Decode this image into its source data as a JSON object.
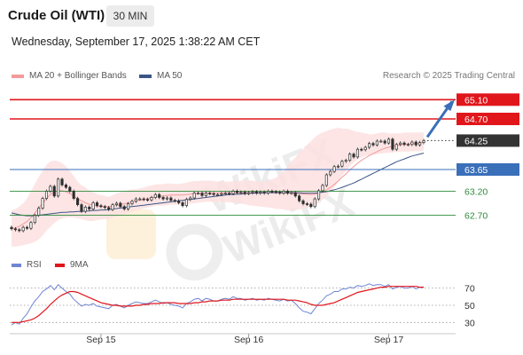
{
  "header": {
    "title": "Crude Oil (WTI)",
    "timeframe": "30 MIN",
    "datetime": "Wednesday, September 17, 2025 1:38:22 AM CET"
  },
  "legend": {
    "ma20_label": "MA 20 + Bollinger Bands",
    "ma50_label": "MA 50",
    "credit": "Research © 2025 Trading Central"
  },
  "rsi_legend": {
    "rsi_label": "RSI",
    "ma_label": "9MA"
  },
  "watermark": "WikiFX",
  "colors": {
    "resistance": "#e0161b",
    "pivot": "#3a6fb9",
    "support": "#2e8b3a",
    "ma20": "#f39a9a",
    "ma50": "#3a5585",
    "candle": "#2f2f2f",
    "bollinger_fill": "#fde0e0",
    "rsi": "#6f85d3",
    "rsi_ma": "#e0161b",
    "arrow": "#3a6fb9"
  },
  "chart_data": [
    {
      "type": "candlestick",
      "title": "Crude Oil (WTI)",
      "timeframe": "30 MIN",
      "x_tick_labels": [
        "Sep 15",
        "Sep 16",
        "Sep 17"
      ],
      "ylim": [
        61.9,
        65.4
      ],
      "levels": [
        {
          "price": 65.1,
          "label": "65.10",
          "kind": "resistance"
        },
        {
          "price": 64.7,
          "label": "64.70",
          "kind": "resistance"
        },
        {
          "price": 64.25,
          "label": "64.25",
          "kind": "last"
        },
        {
          "price": 63.65,
          "label": "63.65",
          "kind": "pivot"
        },
        {
          "price": 63.2,
          "label": "63.20",
          "kind": "support"
        },
        {
          "price": 62.7,
          "label": "62.70",
          "kind": "support"
        }
      ],
      "close": [
        62.42,
        62.4,
        62.38,
        62.45,
        62.43,
        62.55,
        62.7,
        62.85,
        63.05,
        63.2,
        63.3,
        63.1,
        63.45,
        63.33,
        63.28,
        63.2,
        63.05,
        62.92,
        62.78,
        62.87,
        62.83,
        62.96,
        62.9,
        62.88,
        62.86,
        62.82,
        62.92,
        62.95,
        62.88,
        62.83,
        62.94,
        62.99,
        63.04,
        63.04,
        63.03,
        63.02,
        63.07,
        63.13,
        63.07,
        63.04,
        63.06,
        63.01,
        63.0,
        62.96,
        62.9,
        63.03,
        63.06,
        63.16,
        63.16,
        63.11,
        63.16,
        63.15,
        63.13,
        63.13,
        63.15,
        63.16,
        63.15,
        63.2,
        63.17,
        63.18,
        63.15,
        63.17,
        63.19,
        63.16,
        63.18,
        63.16,
        63.2,
        63.19,
        63.18,
        63.16,
        63.2,
        63.16,
        63.17,
        63.1,
        63.0,
        62.94,
        62.93,
        62.88,
        63.04,
        63.21,
        63.32,
        63.54,
        63.61,
        63.71,
        63.72,
        63.82,
        63.84,
        63.97,
        63.91,
        64.07,
        64.06,
        64.11,
        64.19,
        64.16,
        64.24,
        64.24,
        64.2,
        64.28,
        64.07,
        64.17,
        64.2,
        64.17,
        64.17,
        64.22,
        64.16,
        64.21,
        64.25
      ],
      "bollinger_upper": [
        62.8,
        62.83,
        62.88,
        62.95,
        63.05,
        63.2,
        63.35,
        63.5,
        63.62,
        63.75,
        63.82,
        63.84,
        63.82,
        63.78,
        63.72,
        63.62,
        63.52,
        63.4,
        63.32,
        63.28,
        63.22,
        63.18,
        63.14,
        63.12,
        63.1,
        63.08,
        63.12,
        63.15,
        63.18,
        63.2,
        63.22,
        63.24,
        63.24,
        63.26,
        63.28,
        63.3,
        63.32,
        63.34,
        63.34,
        63.35,
        63.36,
        63.36,
        63.35,
        63.35,
        63.36,
        63.38,
        63.4,
        63.41,
        63.41,
        63.42,
        63.42,
        63.42,
        63.41,
        63.4,
        63.4,
        63.4,
        63.4,
        63.41,
        63.41,
        63.42,
        63.42,
        63.42,
        63.42,
        63.4,
        63.4,
        63.4,
        63.42,
        63.45,
        63.48,
        63.55,
        63.62,
        63.72,
        63.82,
        63.9,
        64.0,
        64.08,
        64.16,
        64.24,
        64.32,
        64.38,
        64.42,
        64.45,
        64.48,
        64.5,
        64.52,
        64.5,
        64.5,
        64.48,
        64.45,
        64.43,
        64.42,
        64.4,
        64.38,
        64.38,
        64.4,
        64.42,
        64.42,
        64.4,
        64.4,
        64.4,
        64.4,
        64.42,
        64.42,
        64.42,
        64.42,
        64.42,
        64.42
      ],
      "bollinger_lower": [
        62.05,
        62.05,
        62.06,
        62.08,
        62.1,
        62.12,
        62.15,
        62.2,
        62.28,
        62.38,
        62.46,
        62.54,
        62.6,
        62.63,
        62.65,
        62.66,
        62.65,
        62.64,
        62.62,
        62.6,
        62.58,
        62.58,
        62.6,
        62.61,
        62.62,
        62.62,
        62.65,
        62.68,
        62.7,
        62.72,
        62.75,
        62.78,
        62.8,
        62.82,
        62.84,
        62.86,
        62.88,
        62.9,
        62.9,
        62.9,
        62.91,
        62.92,
        62.92,
        62.92,
        62.93,
        62.93,
        62.94,
        62.95,
        62.96,
        62.97,
        62.98,
        62.98,
        62.98,
        62.97,
        62.97,
        62.97,
        62.97,
        62.96,
        62.95,
        62.94,
        62.93,
        62.91,
        62.9,
        62.89,
        62.88,
        62.87,
        62.86,
        62.85,
        62.83,
        62.83,
        62.82,
        62.8,
        62.8,
        62.81,
        62.82,
        62.84,
        62.86,
        62.88,
        62.9,
        62.96,
        63.02,
        63.1,
        63.18,
        63.28,
        63.4,
        63.52,
        63.62,
        63.72,
        63.8,
        63.86,
        63.9,
        63.93,
        63.95,
        63.96,
        63.97,
        63.98,
        63.99,
        64.0,
        64.0,
        64.01,
        64.02,
        64.02,
        64.02,
        64.03,
        64.03,
        64.03,
        64.04
      ],
      "ma20": [
        62.42,
        62.44,
        62.47,
        62.52,
        62.57,
        62.65,
        62.75,
        62.85,
        62.95,
        63.05,
        63.13,
        63.18,
        63.21,
        63.21,
        63.19,
        63.15,
        63.1,
        63.04,
        63.0,
        62.96,
        62.93,
        62.91,
        62.89,
        62.88,
        62.88,
        62.88,
        62.89,
        62.9,
        62.92,
        62.94,
        62.96,
        62.98,
        62.99,
        63.01,
        63.03,
        63.05,
        63.07,
        63.08,
        63.09,
        63.1,
        63.11,
        63.12,
        63.12,
        63.12,
        63.12,
        63.13,
        63.14,
        63.15,
        63.15,
        63.16,
        63.16,
        63.16,
        63.16,
        63.16,
        63.16,
        63.16,
        63.16,
        63.17,
        63.17,
        63.17,
        63.17,
        63.17,
        63.17,
        63.17,
        63.17,
        63.17,
        63.17,
        63.17,
        63.17,
        63.16,
        63.16,
        63.16,
        63.16,
        63.15,
        63.15,
        63.14,
        63.14,
        63.13,
        63.14,
        63.16,
        63.19,
        63.23,
        63.28,
        63.34,
        63.41,
        63.49,
        63.56,
        63.64,
        63.71,
        63.78,
        63.84,
        63.89,
        63.94,
        63.98,
        64.02,
        64.06,
        64.09,
        64.11,
        64.13,
        64.15,
        64.16,
        64.17,
        64.18,
        64.19,
        64.19,
        64.2,
        64.21
      ],
      "ma50": [
        62.75,
        62.73,
        62.71,
        62.7,
        62.69,
        62.69,
        62.69,
        62.7,
        62.71,
        62.72,
        62.73,
        62.74,
        62.75,
        62.76,
        62.76,
        62.77,
        62.77,
        62.78,
        62.78,
        62.79,
        62.79,
        62.8,
        62.8,
        62.81,
        62.81,
        62.82,
        62.83,
        62.84,
        62.85,
        62.86,
        62.87,
        62.88,
        62.89,
        62.9,
        62.91,
        62.92,
        62.93,
        62.94,
        62.95,
        62.96,
        62.97,
        62.98,
        62.99,
        63.0,
        63.01,
        63.02,
        63.03,
        63.04,
        63.05,
        63.06,
        63.07,
        63.08,
        63.09,
        63.1,
        63.11,
        63.12,
        63.13,
        63.13,
        63.14,
        63.14,
        63.15,
        63.15,
        63.16,
        63.16,
        63.16,
        63.17,
        63.17,
        63.17,
        63.17,
        63.17,
        63.17,
        63.17,
        63.17,
        63.17,
        63.17,
        63.16,
        63.16,
        63.16,
        63.16,
        63.17,
        63.18,
        63.19,
        63.21,
        63.23,
        63.25,
        63.28,
        63.31,
        63.34,
        63.37,
        63.41,
        63.45,
        63.49,
        63.53,
        63.57,
        63.61,
        63.65,
        63.69,
        63.73,
        63.77,
        63.81,
        63.84,
        63.87,
        63.9,
        63.93,
        63.95,
        63.97,
        63.99
      ]
    },
    {
      "type": "line",
      "title": "RSI",
      "y_tick_labels": [
        "70",
        "50",
        "30"
      ],
      "y_ticks": [
        70,
        50,
        30
      ],
      "ylim": [
        20,
        82
      ],
      "series": [
        {
          "name": "RSI",
          "values": [
            27,
            30,
            28,
            35,
            40,
            48,
            55,
            60,
            66,
            69,
            73,
            68,
            74,
            70,
            66,
            63,
            57,
            53,
            49,
            51,
            50,
            52,
            49,
            48,
            47,
            46,
            50,
            51,
            49,
            47,
            50,
            52,
            54,
            53,
            52,
            52,
            54,
            56,
            54,
            52,
            53,
            51,
            50,
            49,
            47,
            52,
            54,
            57,
            58,
            55,
            58,
            57,
            55,
            55,
            57,
            58,
            57,
            60,
            58,
            58,
            56,
            57,
            58,
            56,
            57,
            56,
            58,
            57,
            56,
            55,
            57,
            55,
            56,
            52,
            47,
            43,
            42,
            40,
            46,
            52,
            56,
            61,
            63,
            66,
            66,
            69,
            69,
            71,
            70,
            73,
            72,
            73,
            75,
            73,
            74,
            74,
            72,
            74,
            69,
            71,
            72,
            70,
            70,
            72,
            69,
            71,
            71
          ]
        },
        {
          "name": "9MA",
          "values": [
            30,
            30,
            30,
            31,
            32,
            33,
            35,
            38,
            42,
            46,
            51,
            55,
            59,
            62,
            64,
            66,
            66,
            65,
            63,
            61,
            59,
            57,
            55,
            53,
            52,
            51,
            50,
            50,
            49,
            49,
            49,
            49,
            50,
            50,
            51,
            51,
            52,
            52,
            52,
            53,
            53,
            53,
            53,
            52,
            52,
            52,
            52,
            53,
            53,
            54,
            54,
            55,
            55,
            55,
            56,
            56,
            56,
            57,
            57,
            57,
            57,
            57,
            57,
            57,
            57,
            57,
            57,
            57,
            57,
            57,
            57,
            56,
            56,
            56,
            55,
            54,
            53,
            51,
            50,
            50,
            50,
            51,
            52,
            53,
            55,
            57,
            59,
            61,
            63,
            65,
            66,
            67,
            68,
            69,
            70,
            71,
            71,
            72,
            72,
            72,
            72,
            72,
            72,
            72,
            72,
            71,
            71
          ]
        }
      ]
    }
  ]
}
